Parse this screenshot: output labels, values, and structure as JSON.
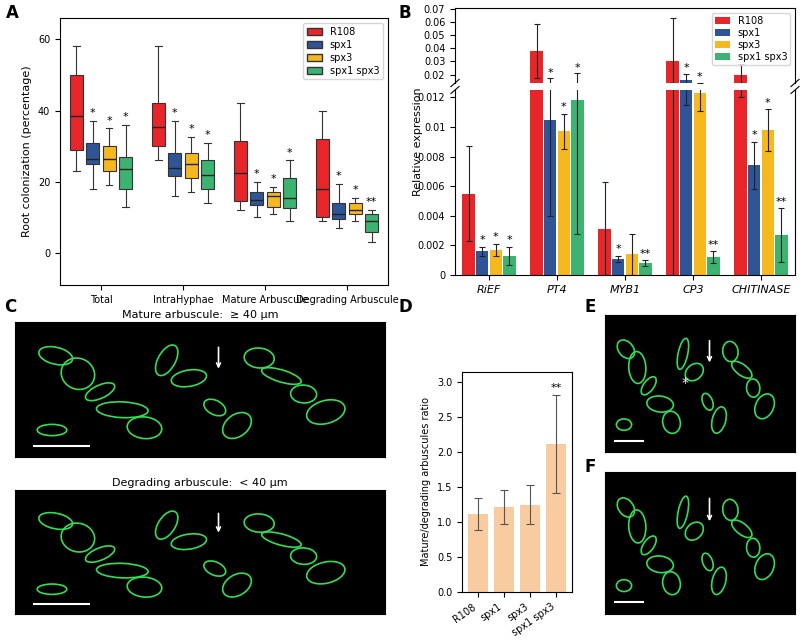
{
  "chart_data": [
    {
      "type": "box",
      "panel": "A",
      "ylabel": "Root colonization (percentage)",
      "categories": [
        "Total",
        "IntraHyphae",
        "Mature Arbuscule",
        "Degrading Arbuscule"
      ],
      "ylim": [
        -9,
        66
      ],
      "yticks": [
        0,
        20,
        40,
        60
      ],
      "legend": "upper right",
      "series": [
        {
          "name": "R108",
          "color": "#e8262a",
          "values": [
            [
              23,
              29,
              38.5,
              50,
              58
            ],
            [
              26,
              30,
              35.5,
              42,
              58
            ],
            [
              12,
              14.5,
              22.5,
              31.5,
              42
            ],
            [
              9,
              10,
              18,
              32,
              40
            ]
          ]
        },
        {
          "name": "spx1",
          "color": "#2f5597",
          "values": [
            [
              18,
              25,
              26.5,
              31,
              37
            ],
            [
              16,
              21.5,
              24,
              28,
              37
            ],
            [
              10,
              13.5,
              15,
              17,
              20
            ],
            [
              7,
              9.5,
              11,
              14,
              19.5
            ]
          ],
          "significance": [
            "*",
            "*",
            "*",
            "*"
          ]
        },
        {
          "name": "spx3",
          "color": "#f5b81f",
          "values": [
            [
              19,
              23,
              26.5,
              30,
              35
            ],
            [
              17,
              21,
              25,
              28,
              32.5
            ],
            [
              11,
              13,
              16,
              17,
              18.5
            ],
            [
              9,
              11,
              12,
              14,
              15.5
            ]
          ],
          "significance": [
            "*",
            "*",
            "*",
            "*"
          ]
        },
        {
          "name": "spx1 spx3",
          "color": "#3cb371",
          "values": [
            [
              13,
              18,
              23.5,
              27,
              36
            ],
            [
              14,
              18,
              22,
              26,
              31
            ],
            [
              9,
              12.5,
              15.5,
              21,
              26
            ],
            [
              3,
              6,
              9,
              11,
              12
            ]
          ],
          "significance": [
            "*",
            "*",
            "*",
            "**"
          ]
        }
      ]
    },
    {
      "type": "bar",
      "panel": "B",
      "ylabel": "Relative expression",
      "categories": [
        "RiEF",
        "PT4",
        "MYB1",
        "CP3",
        "CHITINASE"
      ],
      "ylim": [
        [
          0,
          0.0125
        ],
        [
          0.0135,
          0.071
        ]
      ],
      "yticks": [
        [
          0,
          0.002,
          0.004,
          0.006,
          0.008,
          0.01,
          0.012
        ],
        [
          0.02,
          0.03,
          0.04,
          0.05,
          0.06,
          0.07
        ]
      ],
      "legend": "upper right",
      "series": [
        {
          "name": "R108",
          "color": "#e8262a",
          "values": [
            0.0055,
            0.038,
            0.0031,
            0.03,
            0.02
          ],
          "errors": [
            0.0032,
            0.021,
            0.0032,
            0.033,
            0.008
          ]
        },
        {
          "name": "spx1",
          "color": "#2f5597",
          "values": [
            0.0016,
            0.0105,
            0.0011,
            0.016,
            0.0074
          ],
          "errors": [
            0.0003,
            0.0065,
            0.0002,
            0.0045,
            0.0016
          ],
          "significance": [
            "*",
            "*",
            "*",
            "*",
            "*"
          ]
        },
        {
          "name": "spx3",
          "color": "#f5b81f",
          "values": [
            0.0017,
            0.0097,
            0.0014,
            0.0123,
            0.0098
          ],
          "errors": [
            0.0004,
            0.0012,
            0.0014,
            0.0012,
            0.0014
          ],
          "significance": [
            "*",
            "*",
            null,
            "*",
            "*"
          ]
        },
        {
          "name": "spx1 spx3",
          "color": "#3cb371",
          "values": [
            0.0013,
            0.0118,
            0.0008,
            0.0012,
            0.0027
          ],
          "errors": [
            0.0006,
            0.009,
            0.0002,
            0.0004,
            0.0018
          ],
          "significance": [
            "*",
            "*",
            "**",
            "**",
            "**"
          ]
        }
      ]
    },
    {
      "type": "bar",
      "panel": "D",
      "ylabel": "Mature/degrading arbuscules ratio",
      "categories": [
        "R108",
        "spx1",
        "spx3",
        "spx1 spx3"
      ],
      "color": "#f8cba0",
      "values": [
        1.12,
        1.22,
        1.25,
        2.12
      ],
      "errors": [
        0.23,
        0.24,
        0.28,
        0.7
      ],
      "significance": [
        null,
        null,
        null,
        "**"
      ],
      "ylim": [
        0,
        3.15
      ],
      "yticks": [
        {
          "value": 0,
          "label": "0.0"
        },
        0.5,
        {
          "value": 1,
          "label": "1.0"
        },
        1.5,
        {
          "value": 2,
          "label": "2.0"
        },
        2.5,
        {
          "value": 3,
          "label": "3.0"
        }
      ]
    },
    {
      "type": "image",
      "panel": "C",
      "titles": [
        "Mature arbuscule:  ≥ 40 µm",
        "Degrading arbuscule:  < 40 µm"
      ]
    },
    {
      "type": "image",
      "panel": "E",
      "annotations": [
        "*"
      ]
    },
    {
      "type": "image",
      "panel": "F"
    }
  ]
}
